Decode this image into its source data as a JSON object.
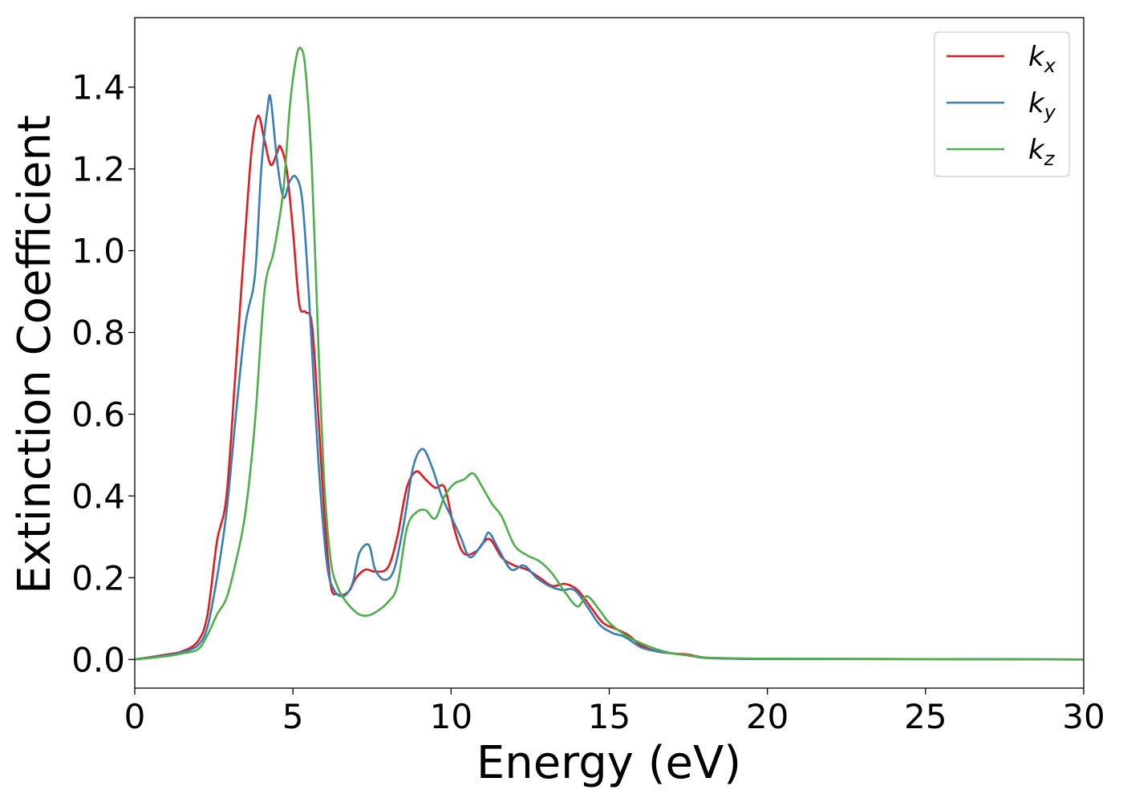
{
  "chart_data": {
    "type": "line",
    "xlabel": "Energy (eV)",
    "ylabel": "Extinction Coefficient",
    "xlim": [
      0,
      30
    ],
    "ylim": [
      -0.07,
      1.57
    ],
    "xticks": [
      0,
      5,
      10,
      15,
      20,
      25,
      30
    ],
    "xtick_labels": [
      "0",
      "5",
      "10",
      "15",
      "20",
      "25",
      "30"
    ],
    "yticks": [
      0.0,
      0.2,
      0.4,
      0.6,
      0.8,
      1.0,
      1.2,
      1.4
    ],
    "ytick_labels": [
      "0.0",
      "0.2",
      "0.4",
      "0.6",
      "0.8",
      "1.0",
      "1.2",
      "1.4"
    ],
    "grid": false,
    "legend_position": "top-right",
    "series": [
      {
        "name": "k",
        "subscript": "x",
        "color": "#e41a1c",
        "x": [
          0,
          1,
          1.5,
          2,
          2.3,
          2.6,
          2.9,
          3.2,
          3.5,
          3.7,
          3.9,
          4.1,
          4.3,
          4.5,
          4.6,
          4.8,
          5.0,
          5.2,
          5.4,
          5.6,
          5.8,
          6.0,
          6.2,
          6.4,
          6.6,
          6.8,
          7.0,
          7.3,
          7.6,
          8.0,
          8.3,
          8.6,
          8.9,
          9.2,
          9.5,
          9.8,
          10.1,
          10.4,
          10.8,
          11.2,
          11.6,
          12.0,
          12.4,
          12.8,
          13.2,
          13.6,
          14.0,
          14.4,
          14.8,
          15.2,
          15.6,
          16.0,
          16.5,
          17.0,
          17.5,
          18.0,
          19.0,
          20,
          25,
          30
        ],
        "y": [
          0.0,
          0.012,
          0.02,
          0.045,
          0.11,
          0.29,
          0.4,
          0.72,
          1.05,
          1.25,
          1.33,
          1.27,
          1.21,
          1.24,
          1.255,
          1.2,
          1.05,
          0.87,
          0.85,
          0.82,
          0.6,
          0.35,
          0.18,
          0.16,
          0.158,
          0.17,
          0.2,
          0.22,
          0.215,
          0.225,
          0.3,
          0.42,
          0.46,
          0.44,
          0.42,
          0.42,
          0.32,
          0.26,
          0.265,
          0.295,
          0.25,
          0.23,
          0.22,
          0.2,
          0.18,
          0.185,
          0.17,
          0.13,
          0.09,
          0.075,
          0.06,
          0.035,
          0.02,
          0.015,
          0.012,
          0.005,
          0.002,
          0.0015,
          0.001,
          0.0
        ]
      },
      {
        "name": "k",
        "subscript": "y",
        "color": "#377eb8",
        "x": [
          0,
          1,
          1.5,
          2,
          2.3,
          2.6,
          2.9,
          3.2,
          3.5,
          3.8,
          4.0,
          4.2,
          4.3,
          4.5,
          4.7,
          4.9,
          5.1,
          5.3,
          5.5,
          5.7,
          5.9,
          6.1,
          6.3,
          6.5,
          6.7,
          6.9,
          7.1,
          7.4,
          7.6,
          7.9,
          8.2,
          8.5,
          8.8,
          9.1,
          9.4,
          9.7,
          10.0,
          10.3,
          10.6,
          11.0,
          11.2,
          11.5,
          11.9,
          12.3,
          12.7,
          13.1,
          13.5,
          13.9,
          14.3,
          14.7,
          15.1,
          15.5,
          16.0,
          16.5,
          17.0,
          17.5,
          18.0,
          19.0,
          20,
          25,
          30
        ],
        "y": [
          0.0,
          0.01,
          0.018,
          0.035,
          0.08,
          0.2,
          0.36,
          0.6,
          0.82,
          0.94,
          1.2,
          1.35,
          1.37,
          1.22,
          1.13,
          1.17,
          1.18,
          1.12,
          0.9,
          0.62,
          0.38,
          0.22,
          0.17,
          0.155,
          0.16,
          0.19,
          0.26,
          0.28,
          0.22,
          0.195,
          0.22,
          0.33,
          0.47,
          0.515,
          0.47,
          0.4,
          0.35,
          0.3,
          0.25,
          0.285,
          0.31,
          0.27,
          0.22,
          0.23,
          0.2,
          0.18,
          0.17,
          0.17,
          0.13,
          0.085,
          0.065,
          0.055,
          0.03,
          0.02,
          0.015,
          0.01,
          0.004,
          0.002,
          0.0015,
          0.001,
          0.0
        ]
      },
      {
        "name": "k",
        "subscript": "z",
        "color": "#4daf4a",
        "x": [
          0,
          1,
          1.5,
          2,
          2.3,
          2.6,
          2.9,
          3.2,
          3.5,
          3.8,
          4.1,
          4.4,
          4.7,
          4.9,
          5.1,
          5.25,
          5.4,
          5.6,
          5.8,
          6.0,
          6.2,
          6.4,
          6.6,
          6.8,
          7.1,
          7.4,
          7.7,
          8.0,
          8.3,
          8.6,
          8.9,
          9.2,
          9.5,
          9.8,
          10.1,
          10.4,
          10.7,
          11.0,
          11.3,
          11.6,
          12.0,
          12.4,
          12.8,
          13.2,
          13.6,
          14.0,
          14.3,
          14.7,
          15.0,
          15.5,
          16.0,
          16.5,
          17.0,
          17.5,
          18.0,
          19.0,
          20,
          25,
          30
        ],
        "y": [
          0.0,
          0.008,
          0.015,
          0.025,
          0.06,
          0.11,
          0.15,
          0.24,
          0.36,
          0.58,
          0.9,
          1.0,
          1.15,
          1.35,
          1.47,
          1.495,
          1.44,
          1.2,
          0.78,
          0.42,
          0.24,
          0.18,
          0.15,
          0.13,
          0.11,
          0.108,
          0.12,
          0.14,
          0.18,
          0.32,
          0.36,
          0.365,
          0.345,
          0.4,
          0.43,
          0.44,
          0.455,
          0.42,
          0.38,
          0.35,
          0.28,
          0.255,
          0.24,
          0.21,
          0.165,
          0.13,
          0.155,
          0.12,
          0.09,
          0.06,
          0.04,
          0.025,
          0.015,
          0.01,
          0.005,
          0.003,
          0.002,
          0.001,
          0.0
        ]
      }
    ]
  }
}
